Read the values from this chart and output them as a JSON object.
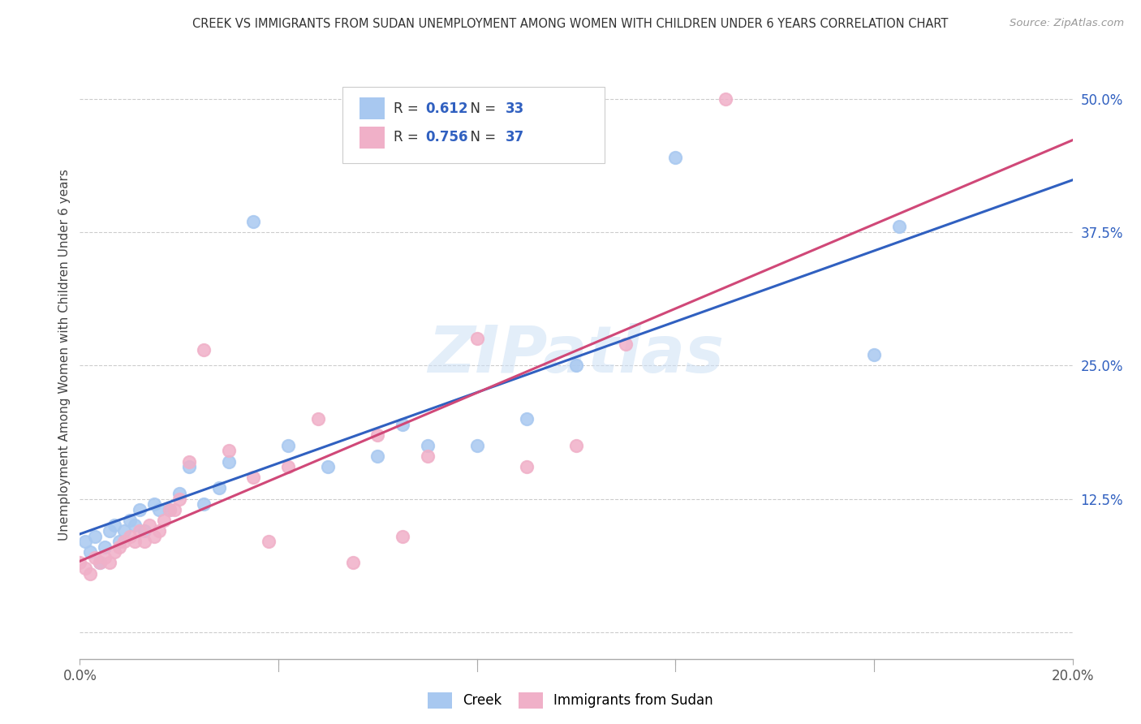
{
  "title": "CREEK VS IMMIGRANTS FROM SUDAN UNEMPLOYMENT AMONG WOMEN WITH CHILDREN UNDER 6 YEARS CORRELATION CHART",
  "source": "Source: ZipAtlas.com",
  "ylabel": "Unemployment Among Women with Children Under 6 years",
  "xlim": [
    0.0,
    0.2
  ],
  "ylim": [
    -0.025,
    0.545
  ],
  "xticks": [
    0.0,
    0.04,
    0.08,
    0.12,
    0.16,
    0.2
  ],
  "xticklabels": [
    "0.0%",
    "",
    "",
    "",
    "",
    "20.0%"
  ],
  "yticks": [
    0.0,
    0.125,
    0.25,
    0.375,
    0.5
  ],
  "yticklabels": [
    "",
    "12.5%",
    "25.0%",
    "37.5%",
    "50.0%"
  ],
  "creek_color": "#a8c8f0",
  "sudan_color": "#f0b0c8",
  "creek_line_color": "#3060c0",
  "sudan_line_color": "#d04878",
  "legend_text_color": "#3060c0",
  "creek_R": 0.612,
  "creek_N": 33,
  "sudan_R": 0.756,
  "sudan_N": 37,
  "watermark": "ZIPatlas",
  "creek_scatter_x": [
    0.001,
    0.002,
    0.003,
    0.004,
    0.005,
    0.006,
    0.007,
    0.008,
    0.009,
    0.01,
    0.011,
    0.012,
    0.013,
    0.015,
    0.016,
    0.018,
    0.02,
    0.022,
    0.025,
    0.028,
    0.03,
    0.035,
    0.042,
    0.05,
    0.06,
    0.065,
    0.07,
    0.08,
    0.09,
    0.1,
    0.12,
    0.16,
    0.165
  ],
  "creek_scatter_y": [
    0.085,
    0.075,
    0.09,
    0.065,
    0.08,
    0.095,
    0.1,
    0.085,
    0.095,
    0.105,
    0.1,
    0.115,
    0.095,
    0.12,
    0.115,
    0.115,
    0.13,
    0.155,
    0.12,
    0.135,
    0.16,
    0.385,
    0.175,
    0.155,
    0.165,
    0.195,
    0.175,
    0.175,
    0.2,
    0.25,
    0.445,
    0.26,
    0.38
  ],
  "sudan_scatter_x": [
    0.0,
    0.001,
    0.002,
    0.003,
    0.004,
    0.005,
    0.006,
    0.007,
    0.008,
    0.009,
    0.01,
    0.011,
    0.012,
    0.013,
    0.014,
    0.015,
    0.016,
    0.017,
    0.018,
    0.019,
    0.02,
    0.022,
    0.025,
    0.03,
    0.035,
    0.038,
    0.042,
    0.048,
    0.055,
    0.06,
    0.065,
    0.07,
    0.08,
    0.09,
    0.1,
    0.11,
    0.13
  ],
  "sudan_scatter_y": [
    0.065,
    0.06,
    0.055,
    0.07,
    0.065,
    0.07,
    0.065,
    0.075,
    0.08,
    0.085,
    0.09,
    0.085,
    0.095,
    0.085,
    0.1,
    0.09,
    0.095,
    0.105,
    0.115,
    0.115,
    0.125,
    0.16,
    0.265,
    0.17,
    0.145,
    0.085,
    0.155,
    0.2,
    0.065,
    0.185,
    0.09,
    0.165,
    0.275,
    0.155,
    0.175,
    0.27,
    0.5
  ]
}
